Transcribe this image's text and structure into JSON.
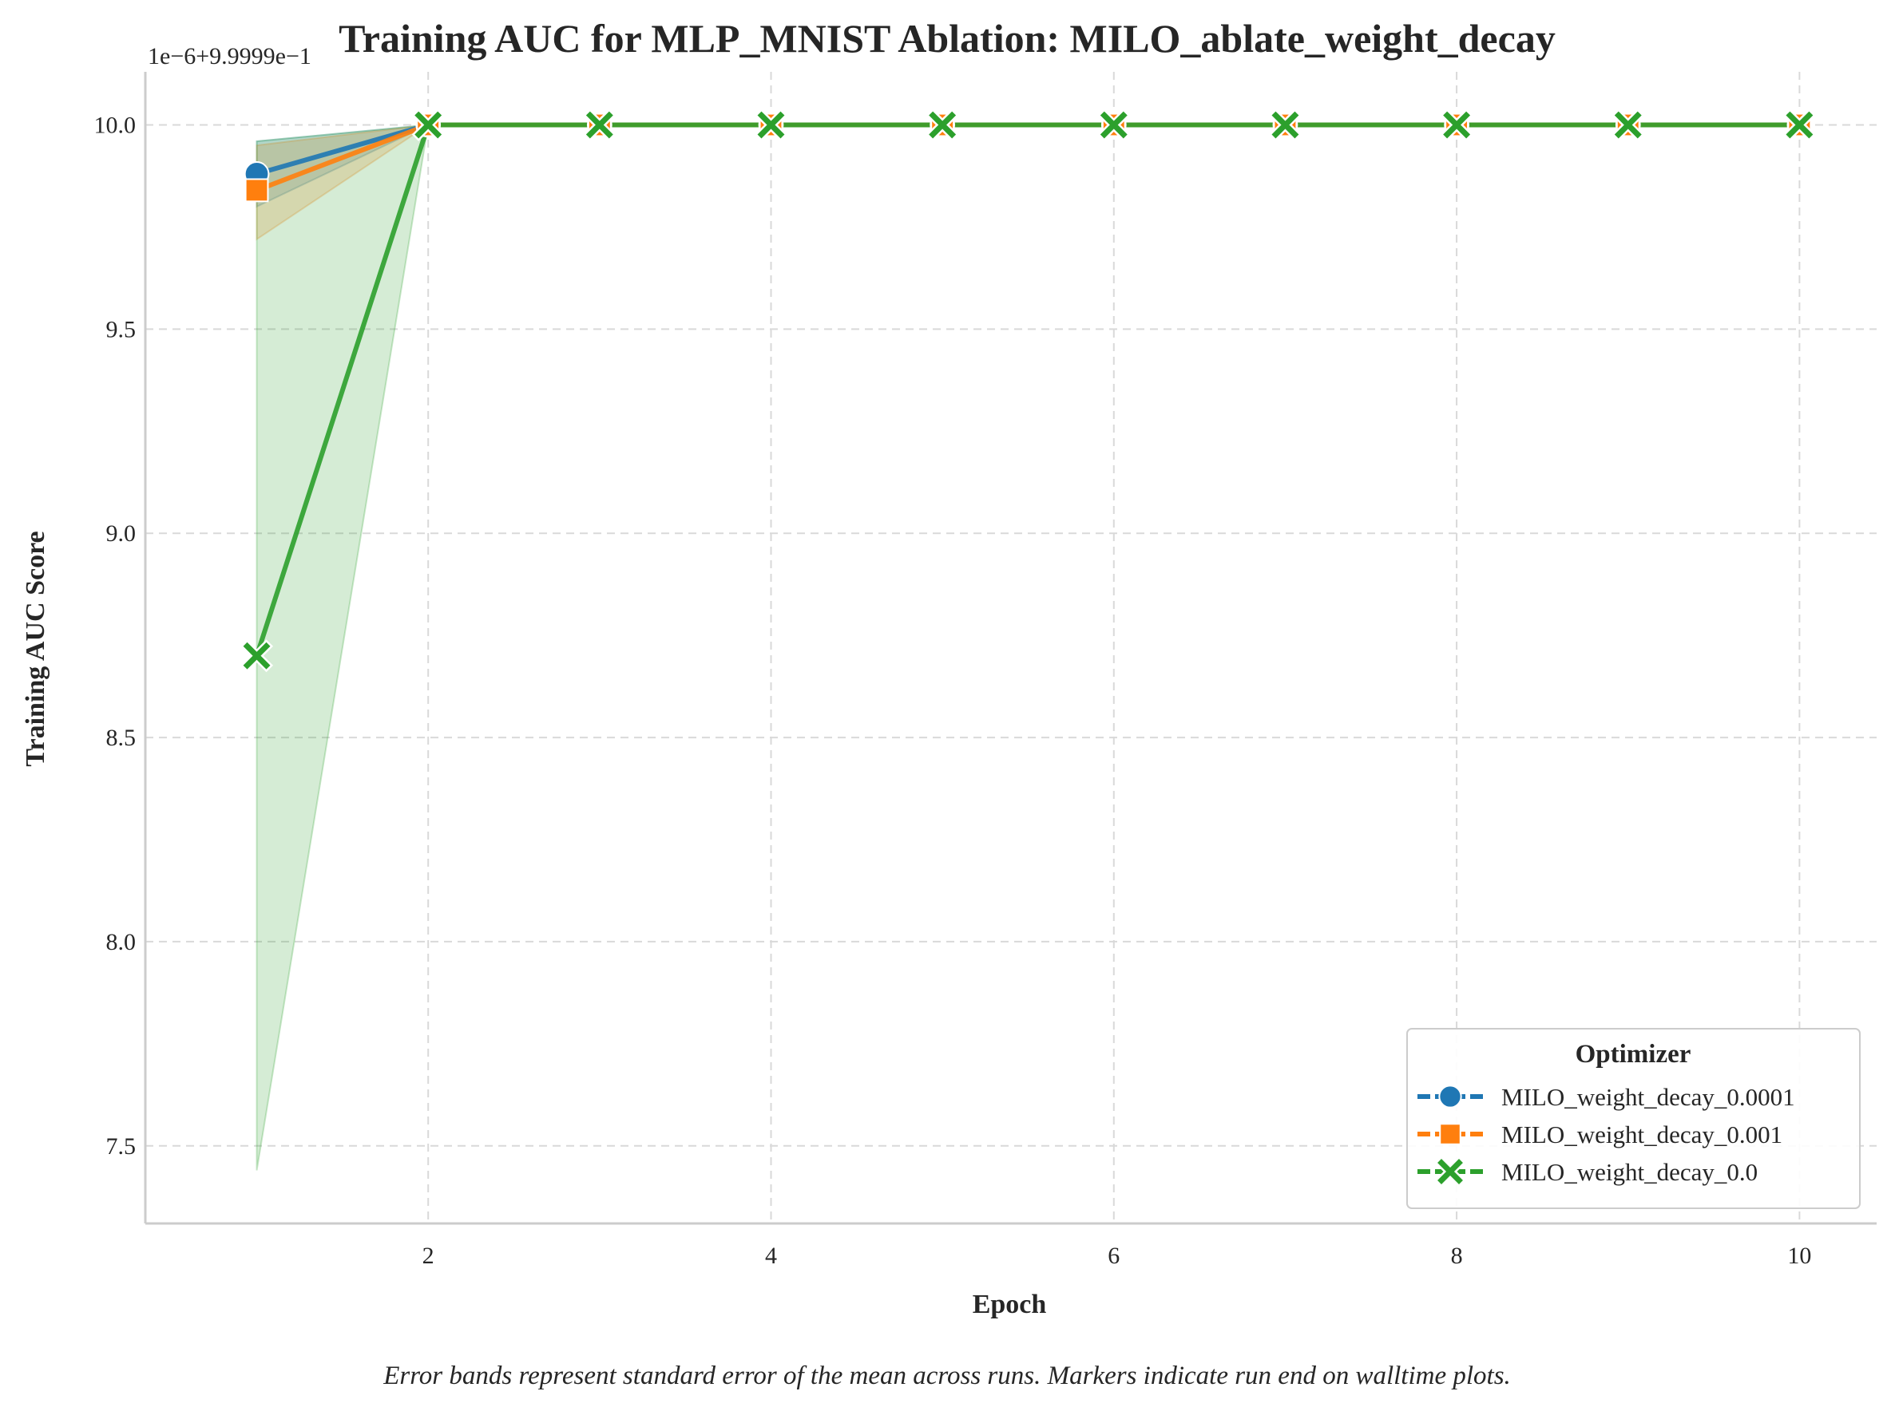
{
  "chart_data": {
    "type": "line",
    "title": "Training AUC for MLP_MNIST Ablation: MILO_ablate_weight_decay",
    "offset_text": "1e−6+9.9999e−1",
    "xlabel": "Epoch",
    "ylabel": "Training AUC Score",
    "x": [
      1,
      2,
      3,
      4,
      5,
      6,
      7,
      8,
      9,
      10
    ],
    "xlim": [
      0.35,
      10.45
    ],
    "ylim": [
      7.31,
      10.13
    ],
    "xticks": [
      2,
      4,
      6,
      8,
      10
    ],
    "xtick_labels": [
      "2",
      "4",
      "6",
      "8",
      "10"
    ],
    "yticks": [
      7.5,
      8.0,
      8.5,
      9.0,
      9.5,
      10.0
    ],
    "ytick_labels": [
      "7.5",
      "8.0",
      "8.5",
      "9.0",
      "9.5",
      "10.0"
    ],
    "grid": true,
    "legend": {
      "title": "Optimizer",
      "placement": "lower right"
    },
    "series": [
      {
        "name": "MILO_weight_decay_0.0001",
        "color": "#1f77b4",
        "marker": "circle",
        "values": [
          9.88,
          10.0,
          10.0,
          10.0,
          10.0,
          10.0,
          10.0,
          10.0,
          10.0,
          10.0
        ],
        "lower": [
          9.8,
          10.0,
          10.0,
          10.0,
          10.0,
          10.0,
          10.0,
          10.0,
          10.0,
          10.0
        ],
        "upper": [
          9.96,
          10.0,
          10.0,
          10.0,
          10.0,
          10.0,
          10.0,
          10.0,
          10.0,
          10.0
        ]
      },
      {
        "name": "MILO_weight_decay_0.001",
        "color": "#ff7f0e",
        "marker": "square",
        "values": [
          9.84,
          10.0,
          10.0,
          10.0,
          10.0,
          10.0,
          10.0,
          10.0,
          10.0,
          10.0
        ],
        "lower": [
          9.72,
          10.0,
          10.0,
          10.0,
          10.0,
          10.0,
          10.0,
          10.0,
          10.0,
          10.0
        ],
        "upper": [
          9.95,
          10.0,
          10.0,
          10.0,
          10.0,
          10.0,
          10.0,
          10.0,
          10.0,
          10.0
        ]
      },
      {
        "name": "MILO_weight_decay_0.0",
        "color": "#2ca02c",
        "marker": "x",
        "values": [
          8.7,
          10.0,
          10.0,
          10.0,
          10.0,
          10.0,
          10.0,
          10.0,
          10.0,
          10.0
        ],
        "lower": [
          7.44,
          10.0,
          10.0,
          10.0,
          10.0,
          10.0,
          10.0,
          10.0,
          10.0,
          10.0
        ],
        "upper": [
          9.96,
          10.0,
          10.0,
          10.0,
          10.0,
          10.0,
          10.0,
          10.0,
          10.0,
          10.0
        ]
      }
    ],
    "caption": "Error bands represent standard error of the mean across runs. Markers indicate run end on walltime plots."
  }
}
